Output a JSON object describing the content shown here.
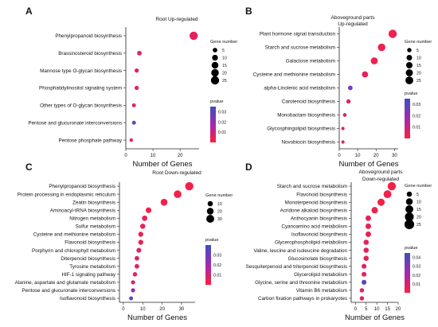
{
  "colors": {
    "pvalue_high": "#3d4fc0",
    "pvalue_mid": "#a329b0",
    "pvalue_low": "#ff1f3a",
    "axis": "#222222"
  },
  "chart_data": [
    {
      "panel": "A",
      "type": "scatter",
      "title": "Root Up-regulated",
      "subtitle": "",
      "xlabel": "Number of Genes",
      "ylabel": "",
      "xlim": [
        0,
        27
      ],
      "xticks": [
        "0",
        "10",
        "20"
      ],
      "xtick_values": [
        0,
        10,
        20
      ],
      "categories": [
        "Phenylpropanoid biosynthesis",
        "Brassinosteroid biosynthesis",
        "Mannose type O-glycan biosynthesis",
        "Phosphatidylinositol signaling system",
        "Other types of O-glycan biosynthesis",
        "Pentose and glucuronate interconversions",
        "Pentose phosphate pathway"
      ],
      "values": [
        25,
        5,
        4,
        4,
        3,
        3,
        2
      ],
      "pvalue": [
        0.005,
        0.005,
        0.005,
        0.005,
        0.005,
        0.03,
        0.005
      ],
      "size_legend": {
        "title": "Gene number",
        "levels": [
          "5",
          "10",
          "15",
          "20",
          "25"
        ],
        "values": [
          5,
          10,
          15,
          20,
          25
        ]
      },
      "color_legend": {
        "title": "pvalue",
        "ticks": [
          "0.03",
          "0.02",
          "0.01"
        ],
        "values": [
          0.03,
          0.02,
          0.01
        ],
        "range": [
          0.0,
          0.035
        ]
      }
    },
    {
      "panel": "B",
      "type": "scatter",
      "title": "Aboveground parts",
      "subtitle": "Up-regulated",
      "xlabel": "Number of Genes",
      "ylabel": "",
      "xlim": [
        0,
        32
      ],
      "xticks": [
        "0",
        "10",
        "20",
        "30"
      ],
      "xtick_values": [
        0,
        10,
        20,
        30
      ],
      "categories": [
        "Plant hormone signal transduction",
        "Starch and sucrose metabolism",
        "Galactose metabolism",
        "Cysteine and methionine metabolism",
        "alpha-Linolenic acid metabolism",
        "Carotenoid biosynthesis",
        "Monobactam biosynthesis",
        "Glycosphingolipid biosynthesis",
        "Novobiocin biosynthesis"
      ],
      "values": [
        29,
        23,
        19,
        14,
        6,
        5,
        3,
        2,
        2
      ],
      "pvalue": [
        0.003,
        0.003,
        0.003,
        0.005,
        0.025,
        0.006,
        0.006,
        0.006,
        0.006
      ],
      "size_legend": {
        "title": "Gene number",
        "levels": [
          "5",
          "10",
          "15",
          "20",
          "25"
        ],
        "values": [
          5,
          10,
          15,
          20,
          25
        ]
      },
      "color_legend": {
        "title": "pvalue",
        "ticks": [
          "0.03",
          "0.02",
          "0.01"
        ],
        "values": [
          0.03,
          0.02,
          0.01
        ],
        "range": [
          0.0,
          0.035
        ]
      }
    },
    {
      "panel": "C",
      "type": "scatter",
      "title": "Root Down-regulated",
      "subtitle": "",
      "xlabel": "Number of Genes",
      "ylabel": "",
      "xlim": [
        -2,
        37
      ],
      "xticks": [
        "0",
        "10",
        "20",
        "30"
      ],
      "xtick_values": [
        0,
        10,
        20,
        30
      ],
      "categories": [
        "Phenylpropanoid biosynthesis",
        "Protein processing in endoplasmic reticulum",
        "Zeatin biosynthesis",
        "Aminoacyl-tRNA biosynthesis",
        "Nitrogen metabolism",
        "Sulfur metabolism",
        "Cysteine and methionine metabolism",
        "Flavonoid biosynthesis",
        "Porphyrin and chlorophyll metabolism",
        "Diterpenoid biosynthesis",
        "Tyrosine metabolism",
        "HIF-1 signaling pathway",
        "Alanine, aspartate and glutamate metabolism",
        "Pentose and glucuronate interconversions",
        "Isoflavonoid biosynthesis"
      ],
      "values": [
        34,
        28,
        21,
        13,
        11,
        10,
        9,
        9,
        8,
        7,
        7,
        6,
        5,
        5,
        4
      ],
      "pvalue": [
        0.003,
        0.003,
        0.003,
        0.003,
        0.004,
        0.004,
        0.005,
        0.005,
        0.006,
        0.007,
        0.006,
        0.006,
        0.008,
        0.02,
        0.035
      ],
      "size_legend": {
        "title": "Gene number",
        "levels": [
          "10",
          "20",
          "30"
        ],
        "values": [
          10,
          20,
          30
        ]
      },
      "color_legend": {
        "title": "pvalue",
        "ticks": [
          "0.03",
          "0.02",
          "0.01"
        ],
        "values": [
          0.03,
          0.02,
          0.01
        ],
        "range": [
          0.0,
          0.04
        ]
      }
    },
    {
      "panel": "D",
      "type": "scatter",
      "title": "Aboveground parts",
      "subtitle": "Down-regulated",
      "xlabel": "Number of Genes",
      "ylabel": "",
      "xlim": [
        -2,
        20
      ],
      "xticks": [
        "0",
        "5",
        "10",
        "15",
        "20"
      ],
      "xtick_values": [
        0,
        5,
        10,
        15,
        20
      ],
      "categories": [
        "Starch and sucrose metabolism",
        "Flavonoid biosynthesis",
        "Monoterpenoid biosynthesis",
        "Acridone alkaloid biosynthesis",
        "Anthocyanin biosynthesis",
        "Cyanoamino acid metabolism",
        "Isoflavonoid biosynthesis",
        "Glycerophospholipid metabolism",
        "Valine, leucine and isoleucine degradation",
        "Glucosinolate biosynthesis",
        "Sesquiterpenoid and triterpenoid biosynthesis",
        "Glycerolipid metabolism",
        "Glycine, serine and threonine metabolism",
        "Vitamin B6 metabolism",
        "Carbon fixation pathways in prokaryotes"
      ],
      "values": [
        17,
        15,
        12,
        9,
        6,
        6,
        6,
        5,
        5,
        5,
        4,
        4,
        4,
        3,
        3
      ],
      "pvalue": [
        0.003,
        0.003,
        0.003,
        0.004,
        0.005,
        0.005,
        0.005,
        0.006,
        0.006,
        0.006,
        0.007,
        0.008,
        0.04,
        0.008,
        0.008
      ],
      "size_legend": {
        "title": "Gene number",
        "levels": [
          "5",
          "10",
          "15",
          "20",
          "25"
        ],
        "values": [
          5,
          10,
          15,
          20,
          25
        ]
      },
      "color_legend": {
        "title": "pvalue",
        "ticks": [
          "0.04",
          "0.03",
          "0.02",
          "0.01"
        ],
        "values": [
          0.04,
          0.03,
          0.02,
          0.01
        ],
        "range": [
          0.0,
          0.045
        ]
      }
    }
  ]
}
